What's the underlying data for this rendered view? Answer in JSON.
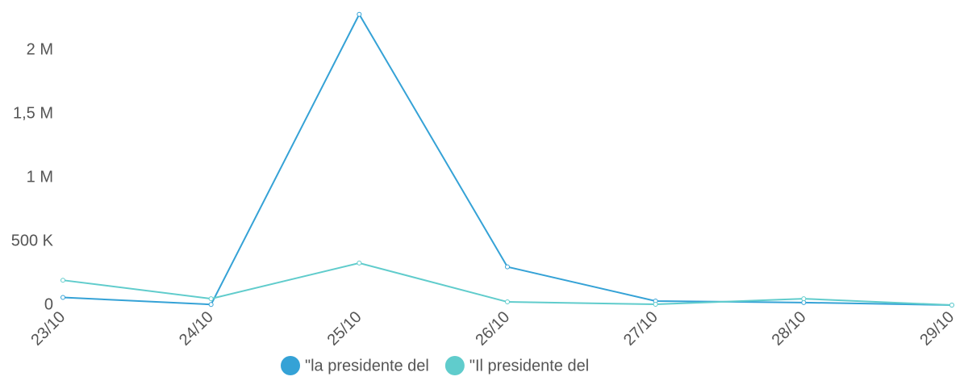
{
  "chart_data": {
    "type": "line",
    "categories": [
      "23/10",
      "24/10",
      "25/10",
      "26/10",
      "27/10",
      "28/10",
      "29/10"
    ],
    "series": [
      {
        "name": "\"la presidente del",
        "color": "#35a2d6",
        "values": [
          60000,
          5000,
          2280000,
          300000,
          32000,
          20000,
          0
        ]
      },
      {
        "name": "\"Il presidente del",
        "color": "#60cccc",
        "values": [
          195000,
          50000,
          330000,
          25000,
          6000,
          50000,
          0
        ]
      }
    ],
    "ylim": [
      0,
      2300000
    ],
    "yticks": [
      0,
      {
        "value": 500000,
        "label": "500 K"
      },
      {
        "value": 1000000,
        "label": "1 M"
      },
      {
        "value": 1500000,
        "label": "1,5 M"
      },
      {
        "value": 2000000,
        "label": "2 M"
      }
    ],
    "legend": "bottom"
  }
}
